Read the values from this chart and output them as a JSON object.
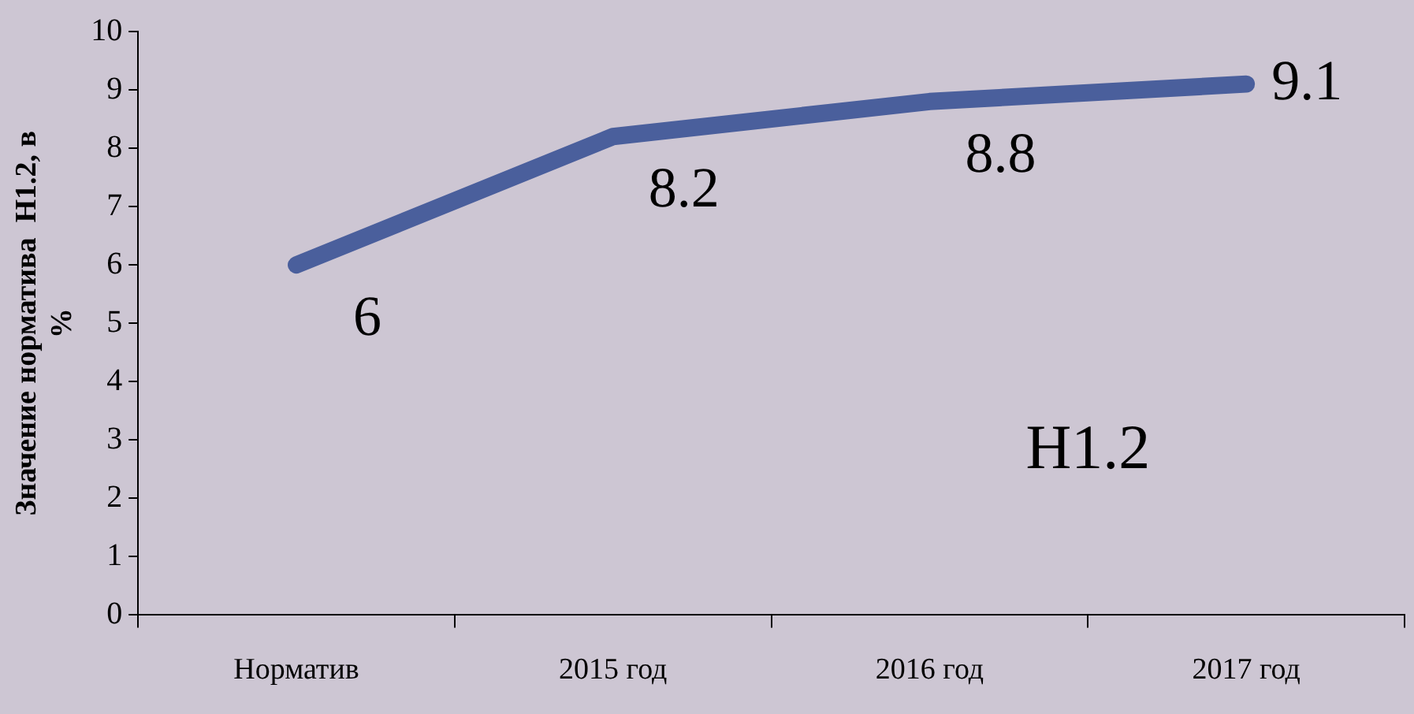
{
  "chart_data": {
    "type": "line",
    "ylabel": "Значение норматива  Н1.2, в %",
    "categories": [
      "Норматив",
      "2015 год",
      "2016 год",
      "2017 год"
    ],
    "series": [
      {
        "name": "Н1.2",
        "color": "#4a5f9c",
        "values": [
          6,
          8.2,
          8.8,
          9.1
        ]
      }
    ],
    "ylim": [
      0,
      10
    ],
    "yticks": [
      0,
      1,
      2,
      3,
      4,
      5,
      6,
      7,
      8,
      9,
      10
    ],
    "grid": false,
    "legend": false,
    "marker": "none",
    "line_style": "solid",
    "data_labels": true
  }
}
